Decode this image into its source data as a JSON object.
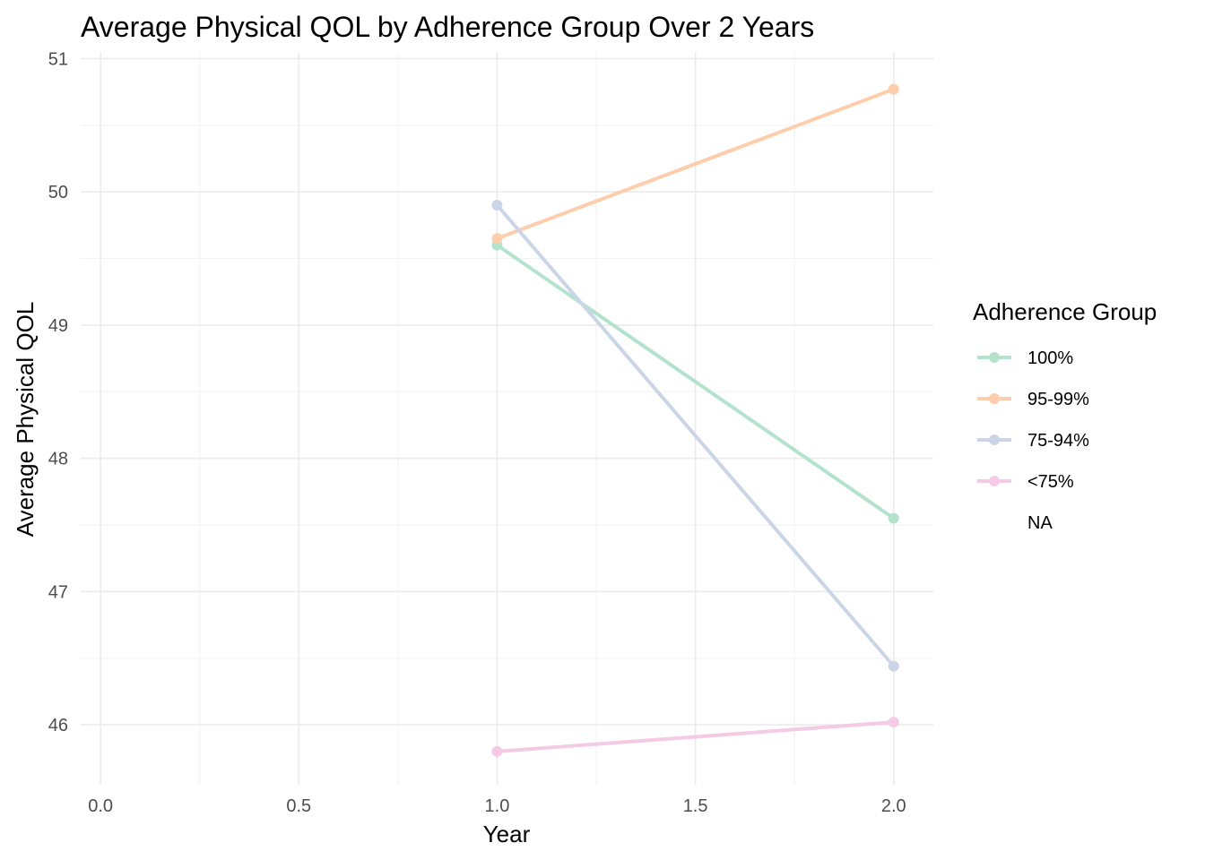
{
  "chart_data": {
    "type": "line",
    "title": "Average Physical QOL by Adherence Group Over 2 Years",
    "xlabel": "Year",
    "ylabel": "Average Physical QOL",
    "xlim": [
      -0.05,
      2.1
    ],
    "ylim": [
      45.55,
      51.05
    ],
    "x_ticks": [
      0.0,
      0.5,
      1.0,
      1.5,
      2.0
    ],
    "x_tick_labels": [
      "0.0",
      "0.5",
      "1.0",
      "1.5",
      "2.0"
    ],
    "y_ticks": [
      46,
      47,
      48,
      49,
      50,
      51
    ],
    "y_tick_labels": [
      "46",
      "47",
      "48",
      "49",
      "50",
      "51"
    ],
    "grid": true,
    "legend": {
      "title": "Adherence Group",
      "placement": "right",
      "entries": [
        {
          "label": "100%",
          "color": "#b3e2cd"
        },
        {
          "label": "95-99%",
          "color": "#fdcdac"
        },
        {
          "label": "75-94%",
          "color": "#cbd5e8"
        },
        {
          "label": "<75%",
          "color": "#f4cae4"
        },
        {
          "label": "NA",
          "color": null
        }
      ]
    },
    "series": [
      {
        "name": "100%",
        "color": "#b3e2cd",
        "x": [
          1,
          2
        ],
        "y": [
          49.6,
          47.55
        ]
      },
      {
        "name": "95-99%",
        "color": "#fdcdac",
        "x": [
          1,
          2
        ],
        "y": [
          49.65,
          50.77
        ]
      },
      {
        "name": "75-94%",
        "color": "#cbd5e8",
        "x": [
          1,
          2
        ],
        "y": [
          49.9,
          46.44
        ]
      },
      {
        "name": "<75%",
        "color": "#f4cae4",
        "x": [
          1,
          2
        ],
        "y": [
          45.8,
          46.02
        ]
      }
    ]
  }
}
